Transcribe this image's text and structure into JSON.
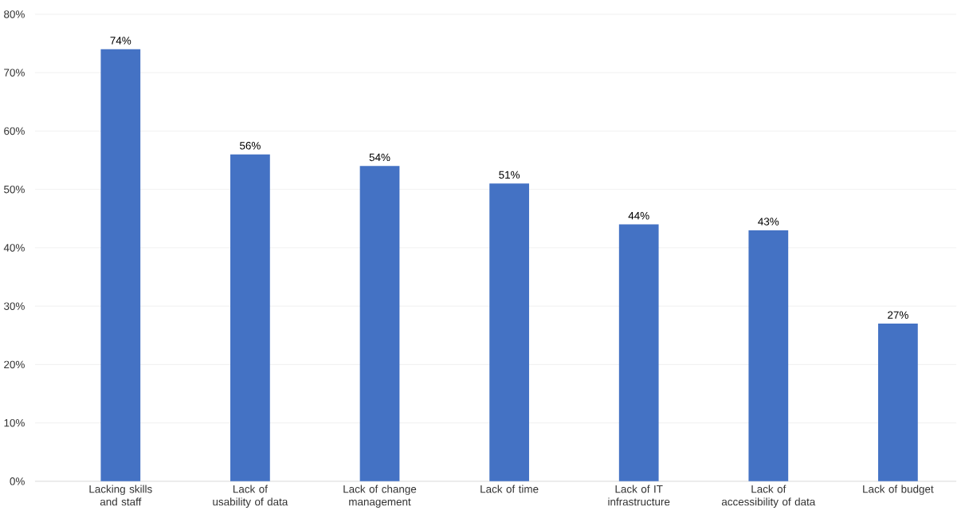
{
  "chart_data": {
    "type": "bar",
    "categories": [
      "Lacking skills and staff",
      "Lack of usability of data",
      "Lack of change management",
      "Lack of time",
      "Lack of IT infrastructure",
      "Lack of accessibility of data",
      "Lack of budget"
    ],
    "values": [
      74,
      56,
      54,
      51,
      44,
      43,
      27
    ],
    "value_labels": [
      "74%",
      "56%",
      "54%",
      "51%",
      "44%",
      "43%",
      "27%"
    ],
    "color": "#4472c4",
    "ylim": [
      0,
      80
    ],
    "yticks": [
      {
        "value": 0,
        "label": "0%"
      },
      {
        "value": 10,
        "label": "10%"
      },
      {
        "value": 20,
        "label": "20%"
      },
      {
        "value": 30,
        "label": "30%"
      },
      {
        "value": 40,
        "label": "40%"
      },
      {
        "value": 50,
        "label": "50%"
      },
      {
        "value": 60,
        "label": "60%"
      },
      {
        "value": 70,
        "label": "70%"
      },
      {
        "value": 80,
        "label": "80%"
      }
    ],
    "grid": "y"
  }
}
